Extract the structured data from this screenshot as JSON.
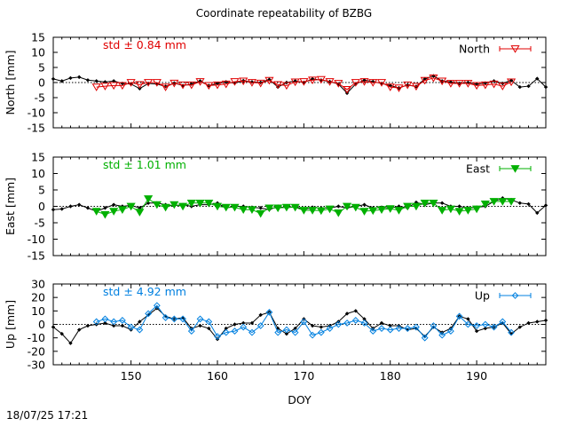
{
  "title": "Coordinate repeatability of BZBG",
  "footer": "18/07/25 17:21",
  "chart_data": [
    {
      "type": "line",
      "panel": "north",
      "ylabel": "North [mm]",
      "ylim": [
        -15,
        15
      ],
      "yticks": [
        -15,
        -10,
        -5,
        0,
        5,
        10,
        15
      ],
      "xlim": [
        141,
        198
      ],
      "legend_label": "North",
      "legend_position": "top-right",
      "std_text": "std ± 0.84 mm",
      "color": "#e00000",
      "marker": "triangle-down-open",
      "reference": {
        "x": [
          141,
          142,
          143,
          144,
          145,
          146,
          147,
          148,
          149,
          150,
          151,
          152,
          153,
          154,
          155,
          156,
          157,
          158,
          159,
          160,
          161,
          162,
          163,
          164,
          165,
          166,
          167,
          168,
          169,
          170,
          171,
          172,
          173,
          174,
          175,
          176,
          177,
          178,
          179,
          180,
          181,
          182,
          183,
          184,
          185,
          186,
          187,
          188,
          189,
          190,
          191,
          192,
          193,
          194,
          195,
          196,
          197,
          198
        ],
        "y": [
          1.2,
          0.5,
          1.5,
          1.8,
          0.8,
          0.5,
          0.2,
          0.5,
          -0.3,
          -0.5,
          -2,
          -0.3,
          -0.5,
          -1.3,
          -0.2,
          -1,
          -0.5,
          0.5,
          -1,
          -0.3,
          0.2,
          -0.2,
          0.6,
          0.2,
          0,
          1,
          -1.5,
          0,
          0.5,
          0,
          1.2,
          0.8,
          0.3,
          -0.5,
          -3.5,
          -0.5,
          0.8,
          0.3,
          -0.3,
          -1,
          -1.8,
          -0.8,
          -1.3,
          1.2,
          2.2,
          0.5,
          0.2,
          -0.3,
          0,
          -0.5,
          -0.2,
          0.5,
          -0.3,
          0.7,
          -1.5,
          -1.2,
          1.3,
          -1.5
        ]
      },
      "solution": {
        "x": [
          146,
          147,
          148,
          149,
          150,
          151,
          152,
          153,
          154,
          155,
          156,
          157,
          158,
          159,
          160,
          161,
          162,
          163,
          164,
          165,
          166,
          167,
          168,
          169,
          170,
          171,
          172,
          173,
          174,
          175,
          176,
          177,
          178,
          179,
          180,
          181,
          182,
          183,
          184,
          185,
          186,
          187,
          188,
          189,
          190,
          191,
          192,
          193,
          194
        ],
        "y": [
          -1.5,
          -1.2,
          -1,
          -1,
          0,
          -0.7,
          0,
          0,
          -1.5,
          -0.2,
          -0.8,
          -0.8,
          0.3,
          -1,
          -0.8,
          -0.5,
          0.3,
          0.5,
          0,
          -0.2,
          0.7,
          -0.7,
          -1,
          0.2,
          0.3,
          0.8,
          1,
          0.3,
          -0.3,
          -2.3,
          0,
          0.3,
          0,
          0,
          -1.5,
          -1.8,
          -0.8,
          -1.3,
          0.7,
          1.5,
          0.5,
          -0.3,
          -0.3,
          -0.3,
          -1,
          -0.8,
          -0.5,
          -1.2,
          0.2
        ]
      }
    },
    {
      "type": "line",
      "panel": "east",
      "ylabel": "East [mm]",
      "ylim": [
        -15,
        15
      ],
      "yticks": [
        -15,
        -10,
        -5,
        0,
        5,
        10,
        15
      ],
      "xlim": [
        141,
        198
      ],
      "legend_label": "East",
      "legend_position": "top-right",
      "std_text": "std ± 1.01 mm",
      "color": "#00b000",
      "marker": "triangle-down-filled",
      "reference": {
        "x": [
          141,
          142,
          143,
          144,
          145,
          146,
          147,
          148,
          149,
          150,
          151,
          152,
          153,
          154,
          155,
          156,
          157,
          158,
          159,
          160,
          161,
          162,
          163,
          164,
          165,
          166,
          167,
          168,
          169,
          170,
          171,
          172,
          173,
          174,
          175,
          176,
          177,
          178,
          179,
          180,
          181,
          182,
          183,
          184,
          185,
          186,
          187,
          188,
          189,
          190,
          191,
          192,
          193,
          194,
          195,
          196,
          197,
          198
        ],
        "y": [
          -1,
          -0.8,
          0,
          0.5,
          -0.5,
          -1.5,
          -0.5,
          0.5,
          0,
          0.3,
          -0.5,
          1,
          1,
          0.5,
          0.2,
          0.5,
          0,
          0.5,
          0.5,
          1,
          -0.5,
          0,
          0,
          -0.3,
          -0.5,
          -1,
          0,
          -0.5,
          0,
          -1,
          -0.3,
          -0.5,
          -0.5,
          0,
          -0.5,
          0,
          0.5,
          -0.5,
          -0.3,
          -0.5,
          0,
          -0.5,
          1.2,
          0.5,
          1,
          1,
          0,
          0,
          -0.5,
          -0.3,
          0,
          1.5,
          2.5,
          2,
          1,
          0.7,
          -2,
          0.3
        ]
      },
      "solution": {
        "x": [
          146,
          147,
          148,
          149,
          150,
          151,
          152,
          153,
          154,
          155,
          156,
          157,
          158,
          159,
          160,
          161,
          162,
          163,
          164,
          165,
          166,
          167,
          168,
          169,
          170,
          171,
          172,
          173,
          174,
          175,
          176,
          177,
          178,
          179,
          180,
          181,
          182,
          183,
          184,
          185,
          186,
          187,
          188,
          189,
          190,
          191,
          192,
          193,
          194
        ],
        "y": [
          -1.5,
          -2.5,
          -1.5,
          -1,
          0,
          -1.8,
          2.3,
          0.5,
          -0.3,
          0.5,
          0,
          1,
          1,
          1,
          0,
          -0.3,
          -0.3,
          -1,
          -1,
          -2.2,
          -0.5,
          -0.5,
          -0.3,
          -0.3,
          -1.2,
          -1.2,
          -1.3,
          -0.8,
          -2,
          0,
          -0.3,
          -1.5,
          -1.3,
          -1,
          -0.7,
          -1.2,
          0,
          0,
          1,
          1,
          -1.2,
          -0.8,
          -1.5,
          -1.2,
          -0.8,
          0.7,
          1.5,
          1.5,
          1.5
        ]
      }
    },
    {
      "type": "line",
      "panel": "up",
      "ylabel": "Up [mm]",
      "ylim": [
        -30,
        30
      ],
      "yticks": [
        -30,
        -20,
        -10,
        0,
        10,
        20,
        30
      ],
      "xlim": [
        141,
        198
      ],
      "xticks": [
        150,
        160,
        170,
        180,
        190
      ],
      "xlabel": "DOY",
      "legend_label": "Up",
      "legend_position": "top-right",
      "std_text": "std ± 4.92 mm",
      "color": "#0080e0",
      "marker": "diamond-open",
      "reference": {
        "x": [
          141,
          142,
          143,
          144,
          145,
          146,
          147,
          148,
          149,
          150,
          151,
          152,
          153,
          154,
          155,
          156,
          157,
          158,
          159,
          160,
          161,
          162,
          163,
          164,
          165,
          166,
          167,
          168,
          169,
          170,
          171,
          172,
          173,
          174,
          175,
          176,
          177,
          178,
          179,
          180,
          181,
          182,
          183,
          184,
          185,
          186,
          187,
          188,
          189,
          190,
          191,
          192,
          193,
          194,
          195,
          196,
          197,
          198
        ],
        "y": [
          -2,
          -7,
          -14,
          -4,
          -1,
          0,
          1,
          -1,
          -1,
          -4,
          2,
          7,
          12,
          6,
          4,
          5,
          -3,
          -1,
          -3,
          -11,
          -3,
          0,
          1,
          1,
          7,
          9,
          -3,
          -7,
          -3,
          4,
          -1,
          -2,
          -1,
          2,
          8,
          10,
          4,
          -3,
          1,
          -1,
          -1,
          -4,
          -3,
          -9,
          -2,
          -6,
          -3,
          6,
          4,
          -5,
          -3,
          -2,
          1,
          -7,
          -2,
          1,
          2,
          3
        ]
      },
      "solution": {
        "x": [
          146,
          147,
          148,
          149,
          150,
          151,
          152,
          153,
          154,
          155,
          156,
          157,
          158,
          159,
          160,
          161,
          162,
          163,
          164,
          165,
          166,
          167,
          168,
          169,
          170,
          171,
          172,
          173,
          174,
          175,
          176,
          177,
          178,
          179,
          180,
          181,
          182,
          183,
          184,
          185,
          186,
          187,
          188,
          189,
          190,
          191,
          192,
          193,
          194
        ],
        "y": [
          2,
          4,
          2,
          3,
          -2,
          -4,
          8,
          14,
          5,
          4,
          4,
          -5,
          4,
          2,
          -9,
          -6,
          -5,
          -2,
          -6,
          -1,
          9,
          -6,
          -4,
          -6,
          2,
          -8,
          -6,
          -3,
          0,
          1,
          3,
          1,
          -5,
          -3,
          -4,
          -3,
          -3,
          -2,
          -10,
          -1,
          -8,
          -5,
          6,
          0,
          -1,
          0,
          -2,
          2,
          -6
        ]
      }
    }
  ]
}
